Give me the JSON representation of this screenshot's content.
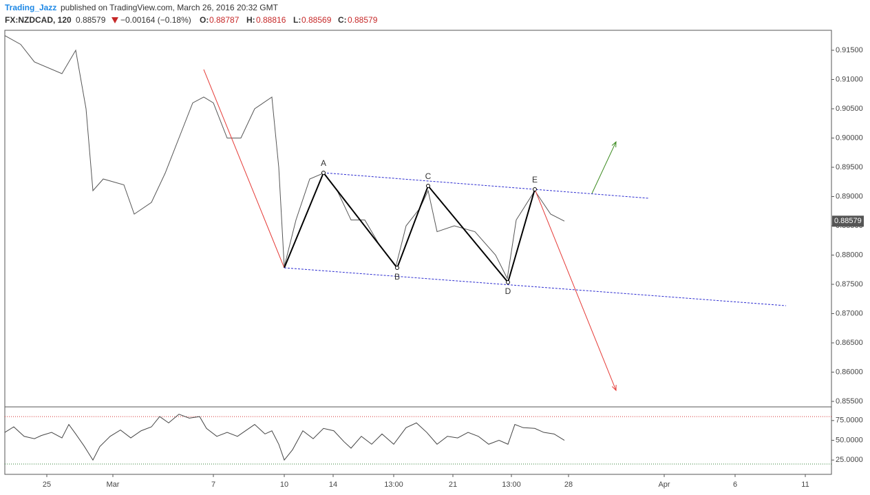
{
  "header": {
    "author": "Trading_Jazz",
    "published": "published on TradingView.com, March 26, 2016 20:32 GMT",
    "symbol": "FX:NZDCAD, 120",
    "last": "0.88579",
    "change": "−0.00164 (−0.18%)",
    "o_label": "O:",
    "o": "0.88787",
    "h_label": "H:",
    "h": "0.88816",
    "l_label": "L:",
    "l": "0.88569",
    "c_label": "C:",
    "c": "0.88579"
  },
  "chart_data": [
    {
      "type": "line",
      "color": "#555555",
      "xlim": [
        0,
        120.1
      ],
      "ylim": [
        0.85418,
        0.91841
      ],
      "xticks": [
        {
          "value": 6.1,
          "label": "25"
        },
        {
          "value": 15.7,
          "label": "Mar"
        },
        {
          "value": 30.3,
          "label": "7"
        },
        {
          "value": 40.6,
          "label": "10"
        },
        {
          "value": 47.7,
          "label": "14"
        },
        {
          "value": 56.5,
          "label": "13:00"
        },
        {
          "value": 65.1,
          "label": "21"
        },
        {
          "value": 73.6,
          "label": "13:00"
        },
        {
          "value": 81.9,
          "label": "28"
        },
        {
          "value": 95.8,
          "label": "Apr"
        },
        {
          "value": 106.1,
          "label": "6"
        },
        {
          "value": 116.3,
          "label": "11"
        }
      ],
      "yticks": [
        {
          "value": 0.855,
          "label": "0.85500"
        },
        {
          "value": 0.86,
          "label": "0.86000"
        },
        {
          "value": 0.865,
          "label": "0.86500"
        },
        {
          "value": 0.87,
          "label": "0.87000"
        },
        {
          "value": 0.875,
          "label": "0.87500"
        },
        {
          "value": 0.88,
          "label": "0.88000"
        },
        {
          "value": 0.885,
          "label": "0.88500"
        },
        {
          "value": 0.89,
          "label": "0.89000"
        },
        {
          "value": 0.895,
          "label": "0.89500"
        },
        {
          "value": 0.9,
          "label": "0.90000"
        },
        {
          "value": 0.905,
          "label": "0.90500"
        },
        {
          "value": 0.91,
          "label": "0.91000"
        },
        {
          "value": 0.915,
          "label": "0.91500"
        }
      ],
      "last_price": {
        "value": 0.88579,
        "label": "0.88579"
      },
      "x": [
        0,
        2.3,
        4.3,
        8.3,
        10.3,
        11.8,
        12.8,
        14.3,
        17.3,
        18.8,
        21.3,
        23.3,
        25.3,
        27.3,
        28.9,
        30.3,
        32.3,
        34.3,
        36.3,
        38.8,
        39.8,
        40.6,
        42.3,
        44.3,
        46.3,
        48.3,
        50.3,
        52.3,
        54.3,
        56.8,
        58.3,
        60.3,
        61.5,
        62.8,
        65.3,
        68.3,
        71.3,
        73.0,
        74.3,
        77.0,
        79.3,
        81.3
      ],
      "values": [
        0.9175,
        0.916,
        0.913,
        0.911,
        0.915,
        0.905,
        0.891,
        0.893,
        0.892,
        0.887,
        0.889,
        0.894,
        0.9,
        0.906,
        0.907,
        0.906,
        0.9,
        0.9,
        0.905,
        0.907,
        0.895,
        0.878,
        0.886,
        0.893,
        0.894,
        0.891,
        0.886,
        0.886,
        0.882,
        0.878,
        0.885,
        0.888,
        0.891,
        0.884,
        0.885,
        0.884,
        0.88,
        0.876,
        0.886,
        0.891,
        0.887,
        0.8858
      ],
      "drawings": [
        {
          "color": "#e53935",
          "points": [
            [
              28.9,
              0.91171
            ],
            [
              40.6,
              0.87782
            ]
          ]
        },
        {
          "color": "#000000",
          "points": [
            [
              40.6,
              0.87782
            ],
            [
              46.3,
              0.89406
            ],
            [
              57.0,
              0.87782
            ],
            [
              61.5,
              0.89182
            ],
            [
              73.1,
              0.87535
            ],
            [
              77.0,
              0.89124
            ]
          ]
        },
        {
          "color": "#2a2ad0",
          "dash": true,
          "points": [
            [
              46.3,
              0.89406
            ],
            [
              93.5,
              0.88971
            ]
          ]
        },
        {
          "color": "#2a2ad0",
          "dash": true,
          "points": [
            [
              40.6,
              0.87782
            ],
            [
              113.5,
              0.87135
            ]
          ]
        },
        {
          "color": "#3a8a1e",
          "arrow": true,
          "points": [
            [
              85.3,
              0.89053
            ],
            [
              88.8,
              0.89935
            ]
          ]
        },
        {
          "color": "#e53935",
          "arrow": true,
          "points": [
            [
              77.0,
              0.89124
            ],
            [
              88.8,
              0.85688
            ]
          ]
        }
      ],
      "wave_labels": [
        {
          "text": "A",
          "x": 46.3,
          "y": 0.89406,
          "pos": "above"
        },
        {
          "text": "B",
          "x": 57.0,
          "y": 0.87782,
          "pos": "below"
        },
        {
          "text": "C",
          "x": 61.5,
          "y": 0.89182,
          "pos": "above"
        },
        {
          "text": "D",
          "x": 73.1,
          "y": 0.87535,
          "pos": "below"
        },
        {
          "text": "E",
          "x": 77.0,
          "y": 0.89124,
          "pos": "above"
        }
      ]
    },
    {
      "type": "line",
      "color": "#444444",
      "xlim": [
        0,
        120.1
      ],
      "ylim": [
        6.9,
        91.4
      ],
      "yticks": [
        {
          "value": 25,
          "label": "25.0000"
        },
        {
          "value": 50,
          "label": "50.0000"
        },
        {
          "value": 75,
          "label": "75.0000"
        }
      ],
      "levels": [
        {
          "value": 80,
          "color": "#d32f2f"
        },
        {
          "value": 20,
          "color": "#2e7d32"
        }
      ],
      "x": [
        0,
        1.3,
        2.8,
        4.3,
        5.3,
        6.8,
        8.3,
        9.3,
        10.3,
        11.5,
        12.8,
        13.8,
        15.3,
        16.8,
        18.3,
        19.8,
        21.3,
        22.5,
        23.8,
        25.3,
        26.8,
        28.3,
        29.3,
        30.8,
        32.3,
        33.8,
        35.3,
        36.3,
        37.8,
        38.8,
        39.8,
        40.6,
        41.8,
        43.3,
        44.8,
        46.3,
        47.8,
        49.3,
        50.3,
        51.8,
        53.3,
        54.8,
        56.5,
        58.3,
        59.8,
        61.3,
        62.8,
        64.3,
        65.8,
        67.3,
        68.8,
        70.3,
        71.8,
        73.1,
        74.1,
        75.3,
        77.0,
        78.3,
        79.8,
        81.3
      ],
      "values": [
        60,
        67,
        55,
        52,
        56,
        60,
        53,
        70,
        58,
        43,
        25,
        42,
        55,
        63,
        53,
        62,
        67,
        80,
        72,
        83,
        78,
        80,
        65,
        55,
        60,
        55,
        64,
        70,
        58,
        62,
        45,
        25,
        38,
        62,
        52,
        65,
        62,
        48,
        40,
        55,
        45,
        58,
        45,
        66,
        72,
        60,
        45,
        55,
        53,
        60,
        55,
        45,
        50,
        45,
        70,
        66,
        65,
        60,
        58,
        50
      ]
    }
  ]
}
